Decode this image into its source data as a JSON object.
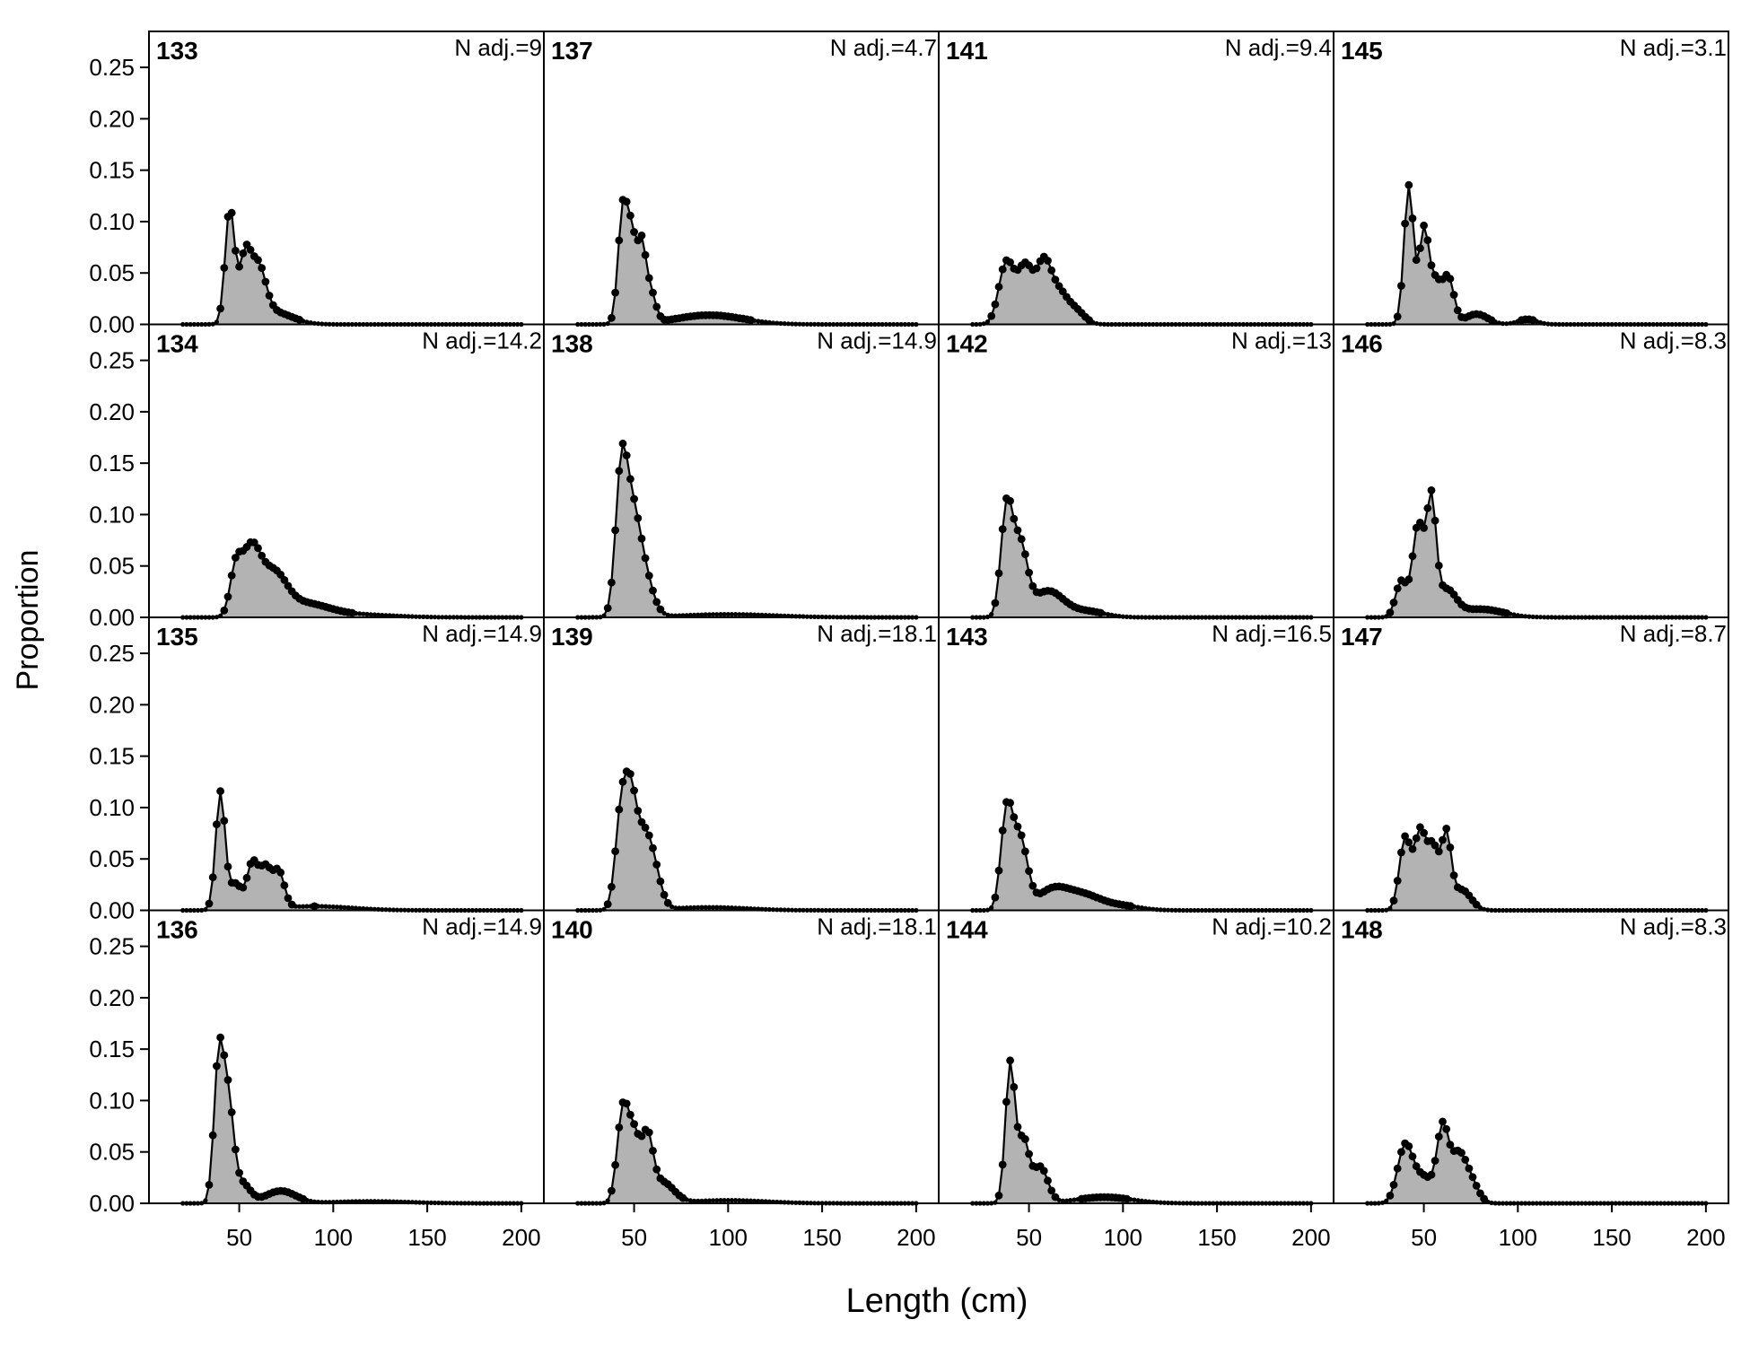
{
  "chart_data": {
    "type": "area",
    "ylabel": "Proportion",
    "xlabel": "Length (cm)",
    "xticks": [
      50,
      100,
      150,
      200
    ],
    "yticks": [
      "0.00",
      "0.05",
      "0.10",
      "0.15",
      "0.20",
      "0.25"
    ],
    "xlim": [
      2,
      212
    ],
    "ylim": [
      0,
      0.285
    ],
    "n_rows": 4,
    "n_cols": 4,
    "fill_color": "#b3b3b3",
    "line_color": "#000000",
    "panels": [
      {
        "id": "133",
        "nadj": "N adj.=9",
        "peaks": [
          [
            45,
            0.112,
            2.5
          ],
          [
            53,
            0.06,
            3
          ],
          [
            60,
            0.05,
            4
          ],
          [
            68,
            0.012,
            10
          ]
        ]
      },
      {
        "id": "134",
        "nadj": "N adj.=14.2",
        "peaks": [
          [
            48,
            0.04,
            3
          ],
          [
            56,
            0.062,
            5
          ],
          [
            68,
            0.04,
            7
          ],
          [
            85,
            0.012,
            12
          ],
          [
            110,
            0.003,
            20
          ]
        ]
      },
      {
        "id": "135",
        "nadj": "N adj.=14.9",
        "peaks": [
          [
            40,
            0.115,
            2.5
          ],
          [
            48,
            0.025,
            3
          ],
          [
            57,
            0.045,
            3
          ],
          [
            64,
            0.038,
            3
          ],
          [
            71,
            0.035,
            3
          ],
          [
            90,
            0.004,
            20
          ]
        ]
      },
      {
        "id": "136",
        "nadj": "N adj.=14.9",
        "peaks": [
          [
            39,
            0.13,
            2.5
          ],
          [
            44,
            0.1,
            3
          ],
          [
            52,
            0.018,
            4
          ],
          [
            72,
            0.012,
            8
          ],
          [
            120,
            0.002,
            20
          ]
        ]
      },
      {
        "id": "137",
        "nadj": "N adj.=4.7",
        "peaks": [
          [
            44,
            0.11,
            2.5
          ],
          [
            49,
            0.08,
            2.5
          ],
          [
            54,
            0.06,
            2
          ],
          [
            58,
            0.035,
            3
          ],
          [
            90,
            0.009,
            18
          ]
        ]
      },
      {
        "id": "138",
        "nadj": "N adj.=14.9",
        "peaks": [
          [
            43,
            0.12,
            3
          ],
          [
            48,
            0.08,
            4
          ],
          [
            54,
            0.05,
            5
          ],
          [
            100,
            0.003,
            25
          ]
        ]
      },
      {
        "id": "139",
        "nadj": "N adj.=18.1",
        "peaks": [
          [
            43,
            0.09,
            3
          ],
          [
            48,
            0.09,
            3
          ],
          [
            54,
            0.06,
            4
          ],
          [
            60,
            0.04,
            4
          ],
          [
            90,
            0.003,
            20
          ]
        ]
      },
      {
        "id": "140",
        "nadj": "N adj.=18.1",
        "peaks": [
          [
            44,
            0.09,
            3
          ],
          [
            50,
            0.06,
            3
          ],
          [
            57,
            0.06,
            3
          ],
          [
            65,
            0.02,
            6
          ],
          [
            100,
            0.003,
            20
          ]
        ]
      },
      {
        "id": "141",
        "nadj": "N adj.=9.4",
        "peaks": [
          [
            38,
            0.06,
            4
          ],
          [
            48,
            0.055,
            4
          ],
          [
            58,
            0.06,
            4
          ],
          [
            66,
            0.025,
            4
          ],
          [
            74,
            0.015,
            5
          ]
        ]
      },
      {
        "id": "142",
        "nadj": "N adj.=13",
        "peaks": [
          [
            38,
            0.1,
            3
          ],
          [
            45,
            0.07,
            4
          ],
          [
            60,
            0.025,
            8
          ],
          [
            80,
            0.006,
            10
          ]
        ]
      },
      {
        "id": "143",
        "nadj": "N adj.=16.5",
        "peaks": [
          [
            38,
            0.09,
            3
          ],
          [
            45,
            0.07,
            4
          ],
          [
            62,
            0.018,
            8
          ],
          [
            78,
            0.015,
            10
          ],
          [
            100,
            0.004,
            10
          ]
        ]
      },
      {
        "id": "144",
        "nadj": "N adj.=10.2",
        "peaks": [
          [
            40,
            0.135,
            2.5
          ],
          [
            47,
            0.06,
            3
          ],
          [
            56,
            0.035,
            4
          ],
          [
            90,
            0.006,
            15
          ]
        ]
      },
      {
        "id": "145",
        "nadj": "N adj.=3.1",
        "peaks": [
          [
            42,
            0.135,
            2.5
          ],
          [
            50,
            0.09,
            2.5
          ],
          [
            56,
            0.04,
            3
          ],
          [
            63,
            0.045,
            3
          ],
          [
            78,
            0.01,
            6
          ],
          [
            105,
            0.005,
            5
          ]
        ]
      },
      {
        "id": "146",
        "nadj": "N adj.=8.3",
        "peaks": [
          [
            38,
            0.035,
            3
          ],
          [
            47,
            0.09,
            3
          ],
          [
            54,
            0.11,
            2.5
          ],
          [
            62,
            0.025,
            5
          ],
          [
            80,
            0.008,
            12
          ]
        ]
      },
      {
        "id": "147",
        "nadj": "N adj.=8.7",
        "peaks": [
          [
            40,
            0.07,
            3
          ],
          [
            48,
            0.075,
            3
          ],
          [
            55,
            0.06,
            3
          ],
          [
            62,
            0.07,
            2.5
          ],
          [
            70,
            0.02,
            5
          ]
        ]
      },
      {
        "id": "148",
        "nadj": "N adj.=8.3",
        "peaks": [
          [
            40,
            0.055,
            4
          ],
          [
            50,
            0.025,
            5
          ],
          [
            60,
            0.07,
            3
          ],
          [
            68,
            0.045,
            4
          ],
          [
            75,
            0.02,
            4
          ]
        ]
      }
    ]
  }
}
